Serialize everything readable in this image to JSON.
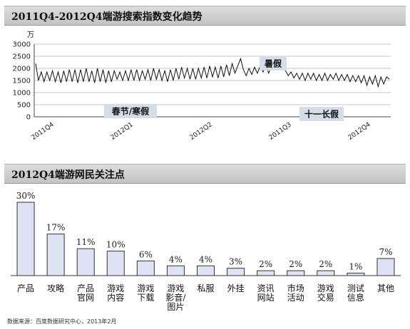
{
  "header1": {
    "title": "2011Q4-2012Q4端游搜索指数变化趋势"
  },
  "header2": {
    "title": "2012Q4端游网民关注点"
  },
  "source": "数据来源：百度数据研究中心，2013年2月",
  "colors": {
    "line": "#111111",
    "bar_fill": "#dde3f2",
    "bar_stroke": "#333333",
    "callout_bg": "#d6dce8"
  },
  "chart_data": [
    {
      "type": "line",
      "title": "2011Q4-2012Q4端游搜索指数变化趋势",
      "unit_label": "万",
      "ylim": [
        0,
        3000
      ],
      "yticks": [
        0,
        500,
        1000,
        1500,
        2000,
        2500,
        3000
      ],
      "xticks": [
        "2011Q4",
        "2012Q1",
        "2012Q2",
        "2011Q3",
        "2012Q4"
      ],
      "grid": true,
      "series": [
        {
          "values": [
            2200,
            1500,
            1850,
            1450,
            1850,
            1500,
            1900,
            1450,
            1850,
            1400,
            1900,
            1450,
            1950,
            1450,
            1950,
            1400,
            1950,
            1450,
            2000,
            1450,
            1900,
            1400,
            2000,
            1450,
            1950,
            1400,
            1900,
            1450,
            1900,
            1550,
            1850,
            1500,
            1900,
            1500,
            1950,
            1500,
            1950,
            1500,
            1900,
            1550,
            1950,
            1500,
            2000,
            1550,
            1950,
            1500,
            1900,
            1450,
            1950,
            1500,
            2000,
            1550,
            2050,
            1600,
            2000,
            1550,
            2000,
            1550,
            2000,
            1600,
            2050,
            1600,
            2100,
            1650,
            2050,
            1600,
            2100,
            1650,
            2150,
            1700,
            2200,
            1800,
            2100,
            2400,
            1950,
            1700,
            2000,
            1750,
            2050,
            1800,
            2100,
            1850,
            2150,
            1800,
            2100,
            2000,
            2200,
            1950,
            2150,
            1900,
            1700,
            1850,
            1600,
            1800,
            1550,
            1800,
            1500,
            1800,
            1550,
            1800,
            1500,
            1750,
            1500,
            1800,
            1500,
            1750,
            1550,
            1800,
            1500,
            1750,
            1500,
            1750,
            1450,
            1700,
            1450,
            1700,
            1400,
            1700,
            1300,
            1650,
            1350,
            1700,
            1250,
            1650,
            1350,
            1650,
            1550
          ]
        }
      ],
      "annotations": [
        {
          "text": "春节/寒假"
        },
        {
          "text": "暑假"
        },
        {
          "text": "十一长假"
        }
      ]
    },
    {
      "type": "bar",
      "title": "2012Q4端游网民关注点",
      "categories": [
        "产品",
        "攻略",
        "产品\n官网",
        "游戏\n内容",
        "游戏\n下载",
        "游戏\n影音/\n图片",
        "私服",
        "外挂",
        "资讯\n网站",
        "市场\n活动",
        "游戏\n交易",
        "测试\n信息",
        "其他"
      ],
      "values": [
        30,
        17,
        11,
        10,
        6,
        4,
        4,
        3,
        2,
        2,
        2,
        1,
        7
      ],
      "labels": [
        "30%",
        "17%",
        "11%",
        "10%",
        "6%",
        "4%",
        "4%",
        "3%",
        "2%",
        "2%",
        "2%",
        "1%",
        "7%"
      ],
      "ylim": [
        0,
        30
      ],
      "grid": false
    }
  ]
}
